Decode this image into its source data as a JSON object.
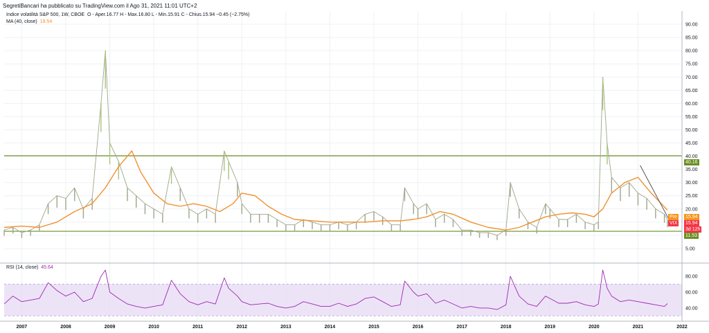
{
  "header": {
    "publisher": "SegretiBancari ha pubblicato su TradingView.com il Ago 31, 2021 11:01 UTC+2",
    "symbol_line": "Indice volatilità S&P 500, 1W, CBOE",
    "ohlc": "O - Aper.16.77  H - Max.16.80  L - Min.15.91  C - Chius.15.94  −0.45 (−2.75%)",
    "ma_label": "MA (40, close)",
    "ma_value": "19.54",
    "rsi_label": "RSI (14, close)",
    "rsi_value": "45.64"
  },
  "tags": {
    "pre_label": "Pre",
    "pre_value": "15.94",
    "vix_label": "VIX",
    "vix_value": "15.94",
    "countdown": "3d 12h",
    "level_high": "40.16",
    "level_low": "11.53"
  },
  "colors": {
    "price": "#9ea58a",
    "price_spike": "#a9c47a",
    "ma": "#f0902e",
    "level": "#6b8e23",
    "rsi": "#9c27b0",
    "rsi_band": "#e9dcf5",
    "trendline": "#555555",
    "tag_orange": "#f7931e",
    "tag_red": "#f23645",
    "tag_green": "#6b8e23"
  },
  "chart_data": [
    {
      "type": "line",
      "title": "Indice volatilità S&P 500, 1W, CBOE",
      "x_ticks": [
        "2007",
        "2008",
        "2009",
        "2010",
        "2011",
        "2012",
        "2013",
        "2014",
        "2015",
        "2016",
        "2017",
        "2018",
        "2019",
        "2020",
        "2021",
        "2022"
      ],
      "y_ticks": [
        "5.00",
        "10.00",
        "15.00",
        "20.00",
        "25.00",
        "30.00",
        "35.00",
        "40.00",
        "45.00",
        "50.00",
        "55.00",
        "60.00",
        "65.00",
        "70.00",
        "75.00",
        "80.00",
        "85.00",
        "90.00"
      ],
      "ylim": [
        0,
        95
      ],
      "horizontal_levels": [
        40.16,
        11.53
      ],
      "series": [
        {
          "name": "VIX",
          "x": [
            2006.6,
            2006.8,
            2007.0,
            2007.2,
            2007.4,
            2007.6,
            2007.8,
            2008.0,
            2008.2,
            2008.4,
            2008.6,
            2008.8,
            2008.9,
            2009.0,
            2009.2,
            2009.4,
            2009.6,
            2009.8,
            2010.0,
            2010.2,
            2010.4,
            2010.6,
            2010.8,
            2011.0,
            2011.2,
            2011.4,
            2011.6,
            2011.7,
            2011.9,
            2012.0,
            2012.2,
            2012.4,
            2012.6,
            2012.8,
            2013.0,
            2013.2,
            2013.4,
            2013.6,
            2013.8,
            2014.0,
            2014.2,
            2014.4,
            2014.6,
            2014.8,
            2015.0,
            2015.2,
            2015.4,
            2015.6,
            2015.7,
            2015.9,
            2016.0,
            2016.2,
            2016.4,
            2016.6,
            2016.8,
            2017.0,
            2017.2,
            2017.4,
            2017.6,
            2017.8,
            2018.0,
            2018.1,
            2018.3,
            2018.5,
            2018.7,
            2018.9,
            2019.0,
            2019.2,
            2019.4,
            2019.6,
            2019.8,
            2020.0,
            2020.1,
            2020.2,
            2020.3,
            2020.4,
            2020.6,
            2020.8,
            2021.0,
            2021.2,
            2021.4,
            2021.6,
            2021.67
          ],
          "values": [
            12,
            13,
            11,
            12,
            14,
            22,
            25,
            24,
            28,
            20,
            24,
            60,
            80,
            45,
            38,
            28,
            25,
            22,
            20,
            18,
            36,
            28,
            20,
            18,
            20,
            18,
            42,
            38,
            30,
            22,
            18,
            18,
            18,
            16,
            14,
            14,
            16,
            15,
            14,
            14,
            15,
            14,
            15,
            18,
            19,
            17,
            14,
            14,
            28,
            22,
            20,
            22,
            16,
            18,
            16,
            12,
            12,
            11,
            11,
            10,
            12,
            30,
            20,
            15,
            13,
            22,
            20,
            16,
            16,
            18,
            15,
            14,
            15,
            70,
            45,
            32,
            28,
            30,
            26,
            24,
            20,
            18,
            15.94
          ]
        },
        {
          "name": "MA (40, close)",
          "x": [
            2006.6,
            2007.0,
            2007.4,
            2007.8,
            2008.2,
            2008.6,
            2008.9,
            2009.2,
            2009.5,
            2009.7,
            2010.0,
            2010.3,
            2010.6,
            2010.9,
            2011.2,
            2011.5,
            2011.8,
            2012.0,
            2012.3,
            2012.6,
            2012.9,
            2013.2,
            2013.6,
            2014.0,
            2014.4,
            2014.8,
            2015.2,
            2015.6,
            2015.9,
            2016.2,
            2016.5,
            2016.8,
            2017.2,
            2017.6,
            2018.0,
            2018.3,
            2018.6,
            2018.9,
            2019.2,
            2019.5,
            2019.8,
            2020.0,
            2020.2,
            2020.4,
            2020.7,
            2021.0,
            2021.3,
            2021.67
          ],
          "values": [
            13,
            13.5,
            13,
            15,
            19,
            22,
            28,
            36,
            42,
            34,
            26,
            22,
            21,
            22,
            21,
            19,
            22,
            26,
            25,
            21,
            18,
            16,
            15.5,
            15,
            15,
            15,
            15.5,
            15.5,
            16,
            17,
            19,
            18,
            15,
            13,
            12,
            13,
            15,
            17,
            18,
            18.5,
            18,
            17,
            20,
            26,
            30,
            32,
            26,
            19.54
          ]
        }
      ]
    },
    {
      "type": "line",
      "title": "RSI (14, close)",
      "y_ticks": [
        "40.00",
        "60.00",
        "80.00"
      ],
      "ylim": [
        25,
        95
      ],
      "band": [
        30,
        70
      ],
      "series": [
        {
          "name": "RSI",
          "x": [
            2006.6,
            2006.8,
            2007.0,
            2007.2,
            2007.4,
            2007.6,
            2007.8,
            2008.0,
            2008.2,
            2008.4,
            2008.6,
            2008.8,
            2008.9,
            2009.0,
            2009.2,
            2009.4,
            2009.6,
            2009.8,
            2010.0,
            2010.2,
            2010.4,
            2010.6,
            2010.8,
            2011.0,
            2011.2,
            2011.4,
            2011.6,
            2011.7,
            2011.9,
            2012.0,
            2012.2,
            2012.4,
            2012.6,
            2012.8,
            2013.0,
            2013.2,
            2013.4,
            2013.6,
            2013.8,
            2014.0,
            2014.2,
            2014.4,
            2014.6,
            2014.8,
            2015.0,
            2015.2,
            2015.4,
            2015.6,
            2015.7,
            2015.9,
            2016.0,
            2016.2,
            2016.4,
            2016.6,
            2016.8,
            2017.0,
            2017.2,
            2017.4,
            2017.6,
            2017.8,
            2018.0,
            2018.1,
            2018.3,
            2018.5,
            2018.7,
            2018.9,
            2019.0,
            2019.2,
            2019.4,
            2019.6,
            2019.8,
            2020.0,
            2020.1,
            2020.2,
            2020.3,
            2020.4,
            2020.6,
            2020.8,
            2021.0,
            2021.2,
            2021.4,
            2021.6,
            2021.67
          ],
          "values": [
            45,
            55,
            48,
            50,
            52,
            72,
            62,
            55,
            60,
            48,
            52,
            80,
            88,
            60,
            52,
            45,
            42,
            40,
            42,
            44,
            75,
            58,
            48,
            44,
            48,
            45,
            78,
            65,
            55,
            48,
            44,
            45,
            46,
            42,
            40,
            42,
            48,
            45,
            42,
            42,
            46,
            42,
            45,
            52,
            54,
            48,
            42,
            44,
            74,
            60,
            55,
            58,
            46,
            50,
            45,
            40,
            42,
            40,
            40,
            38,
            44,
            80,
            55,
            45,
            42,
            55,
            52,
            46,
            46,
            48,
            44,
            42,
            45,
            88,
            65,
            55,
            48,
            50,
            48,
            46,
            44,
            42,
            45.64
          ]
        }
      ]
    }
  ]
}
